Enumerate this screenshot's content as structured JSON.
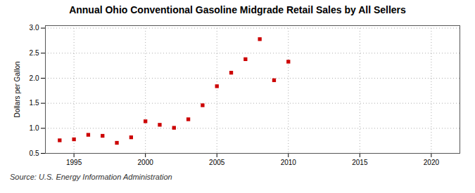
{
  "chart_data": {
    "type": "scatter",
    "title": "Annual Ohio Conventional Gasoline Midgrade Retail Sales by All Sellers",
    "ylabel": "Dollars per Gallon",
    "annotations": [
      "Source: U.S. Energy Information Administration"
    ],
    "x": [
      1994,
      1995,
      1996,
      1997,
      1998,
      1999,
      2000,
      2001,
      2002,
      2003,
      2004,
      2005,
      2006,
      2007,
      2008,
      2009,
      2010
    ],
    "values": [
      0.76,
      0.78,
      0.87,
      0.85,
      0.71,
      0.82,
      1.14,
      1.07,
      1.01,
      1.18,
      1.46,
      1.84,
      2.11,
      2.38,
      2.78,
      1.96,
      2.33
    ],
    "color": "#cc0000",
    "marker": "square",
    "xlim": [
      1993,
      2022
    ],
    "xticks": [
      1995,
      2000,
      2005,
      2010,
      2015,
      2020
    ],
    "ylim": [
      0.5,
      3.05
    ],
    "yticks": [
      0.5,
      {
        "value": 1.0,
        "label": "1.0"
      },
      1.5,
      {
        "value": 2.0,
        "label": "2.0"
      },
      2.5,
      {
        "value": 3.0,
        "label": "3.0"
      }
    ],
    "grid": true
  }
}
